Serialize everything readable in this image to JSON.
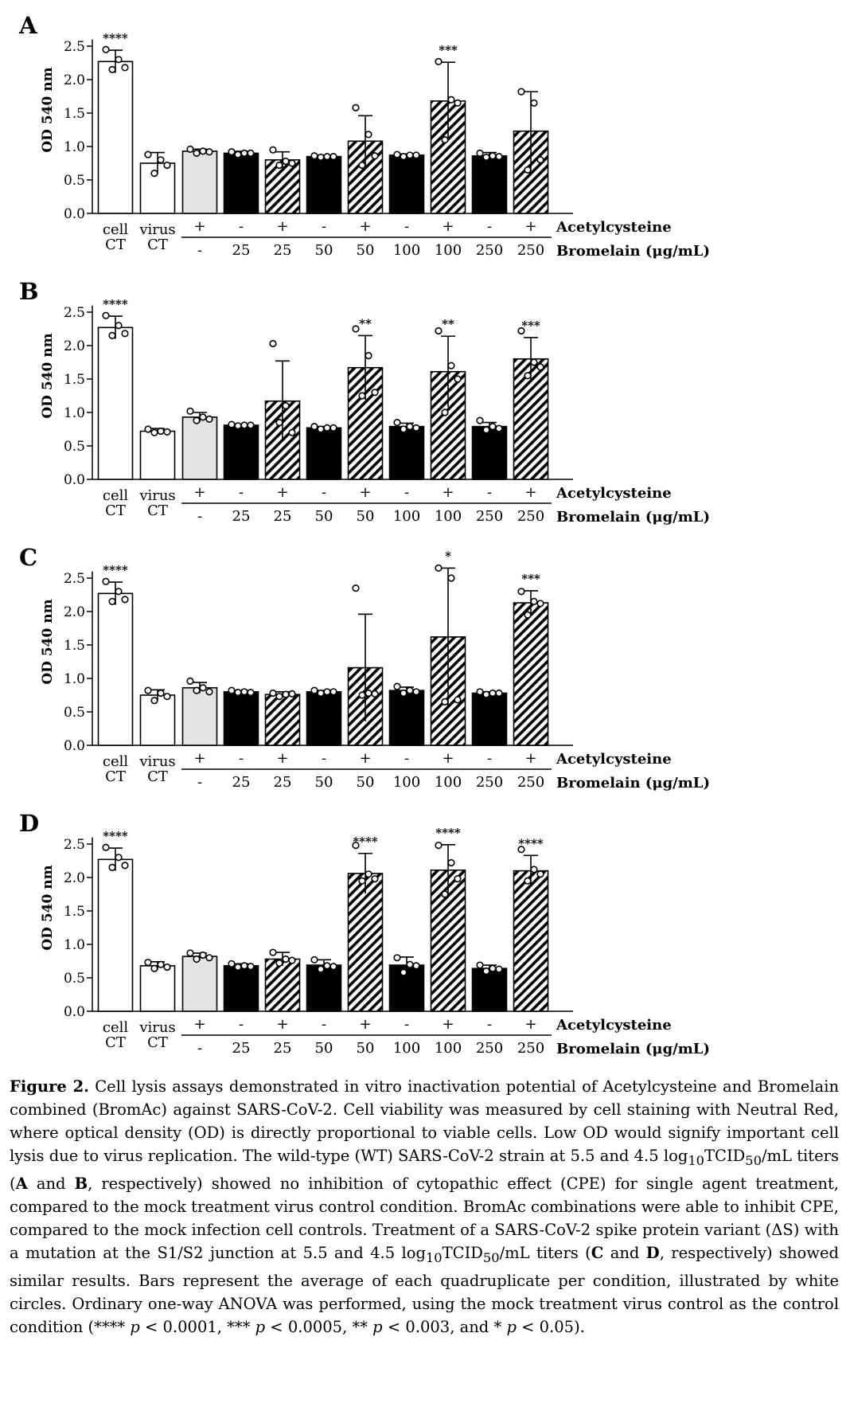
{
  "yaxis": {
    "label": "OD 540 nm",
    "ticks": [
      "0.0",
      "0.5",
      "1.0",
      "1.5",
      "2.0",
      "2.5"
    ],
    "range": [
      0,
      2.6
    ]
  },
  "row_labels": {
    "acetylcysteine": "Acetylcysteine",
    "bromelain": "Bromelain (μg/mL)"
  },
  "groups": [
    {
      "top": "cell",
      "bottom": "CT",
      "acetyl": "",
      "brom": "",
      "fill": "white"
    },
    {
      "top": "virus",
      "bottom": "CT",
      "acetyl": "",
      "brom": "",
      "fill": "white"
    },
    {
      "top": "",
      "bottom": "",
      "acetyl": "+",
      "brom": "-",
      "fill": "gray"
    },
    {
      "top": "",
      "bottom": "",
      "acetyl": "-",
      "brom": "25",
      "fill": "black"
    },
    {
      "top": "",
      "bottom": "",
      "acetyl": "+",
      "brom": "25",
      "fill": "hatch"
    },
    {
      "top": "",
      "bottom": "",
      "acetyl": "-",
      "brom": "50",
      "fill": "black"
    },
    {
      "top": "",
      "bottom": "",
      "acetyl": "+",
      "brom": "50",
      "fill": "hatch"
    },
    {
      "top": "",
      "bottom": "",
      "acetyl": "-",
      "brom": "100",
      "fill": "black"
    },
    {
      "top": "",
      "bottom": "",
      "acetyl": "+",
      "brom": "100",
      "fill": "hatch"
    },
    {
      "top": "",
      "bottom": "",
      "acetyl": "-",
      "brom": "250",
      "fill": "black"
    },
    {
      "top": "",
      "bottom": "",
      "acetyl": "+",
      "brom": "250",
      "fill": "hatch"
    }
  ],
  "chart_data": [
    {
      "panel": "A",
      "type": "bar",
      "ylabel": "OD 540 nm",
      "ylim": [
        0,
        2.6
      ],
      "values": [
        2.27,
        0.75,
        0.93,
        0.9,
        0.8,
        0.85,
        1.08,
        0.87,
        1.68,
        0.86,
        1.23
      ],
      "errors": [
        0.17,
        0.16,
        0.03,
        0.03,
        0.12,
        0.02,
        0.38,
        0.02,
        0.58,
        0.05,
        0.59
      ],
      "points": [
        [
          2.45,
          2.15,
          2.3,
          2.18
        ],
        [
          0.88,
          0.6,
          0.8,
          0.72
        ],
        [
          0.96,
          0.9,
          0.93,
          0.92
        ],
        [
          0.92,
          0.88,
          0.9,
          0.9
        ],
        [
          0.95,
          0.72,
          0.78,
          0.75
        ],
        [
          0.86,
          0.84,
          0.85,
          0.85
        ],
        [
          1.58,
          0.72,
          1.18,
          0.86
        ],
        [
          0.88,
          0.85,
          0.87,
          0.87
        ],
        [
          2.27,
          1.1,
          1.7,
          1.65
        ],
        [
          0.9,
          0.84,
          0.86,
          0.85
        ],
        [
          1.82,
          0.65,
          1.65,
          0.8
        ]
      ],
      "significance": [
        "****",
        "",
        "",
        "",
        "",
        "",
        "",
        "",
        "***",
        "",
        ""
      ]
    },
    {
      "panel": "B",
      "type": "bar",
      "ylabel": "OD 540 nm",
      "ylim": [
        0,
        2.6
      ],
      "values": [
        2.27,
        0.72,
        0.93,
        0.81,
        1.17,
        0.77,
        1.67,
        0.79,
        1.61,
        0.79,
        1.8
      ],
      "errors": [
        0.17,
        0.04,
        0.07,
        0.01,
        0.6,
        0.02,
        0.48,
        0.05,
        0.53,
        0.06,
        0.32
      ],
      "points": [
        [
          2.45,
          2.15,
          2.3,
          2.18
        ],
        [
          0.75,
          0.7,
          0.72,
          0.71
        ],
        [
          1.02,
          0.88,
          0.93,
          0.9
        ],
        [
          0.82,
          0.8,
          0.81,
          0.81
        ],
        [
          2.03,
          0.85,
          1.1,
          0.7
        ],
        [
          0.79,
          0.75,
          0.77,
          0.77
        ],
        [
          2.25,
          1.25,
          1.85,
          1.3
        ],
        [
          0.85,
          0.75,
          0.79,
          0.77
        ],
        [
          2.22,
          1.0,
          1.7,
          1.5
        ],
        [
          0.88,
          0.74,
          0.79,
          0.76
        ],
        [
          2.22,
          1.55,
          1.75,
          1.68
        ]
      ],
      "significance": [
        "****",
        "",
        "",
        "",
        "",
        "",
        "**",
        "",
        "**",
        "",
        "***"
      ]
    },
    {
      "panel": "C",
      "type": "bar",
      "ylabel": "OD 540 nm",
      "ylim": [
        0,
        2.6
      ],
      "values": [
        2.27,
        0.75,
        0.86,
        0.8,
        0.76,
        0.8,
        1.16,
        0.82,
        1.62,
        0.78,
        2.13
      ],
      "errors": [
        0.17,
        0.08,
        0.08,
        0.02,
        0.04,
        0.02,
        0.8,
        0.05,
        1.03,
        0.02,
        0.18
      ],
      "points": [
        [
          2.45,
          2.15,
          2.3,
          2.18
        ],
        [
          0.82,
          0.67,
          0.78,
          0.73
        ],
        [
          0.96,
          0.82,
          0.86,
          0.8
        ],
        [
          0.82,
          0.79,
          0.8,
          0.79
        ],
        [
          0.78,
          0.73,
          0.76,
          0.77
        ],
        [
          0.82,
          0.78,
          0.8,
          0.8
        ],
        [
          2.35,
          0.75,
          0.78,
          0.77
        ],
        [
          0.88,
          0.78,
          0.82,
          0.8
        ],
        [
          2.65,
          0.65,
          2.5,
          0.68
        ],
        [
          0.8,
          0.76,
          0.78,
          0.78
        ],
        [
          2.3,
          1.95,
          2.15,
          2.12
        ]
      ],
      "significance": [
        "****",
        "",
        "",
        "",
        "",
        "",
        "",
        "",
        "*",
        "",
        "***"
      ]
    },
    {
      "panel": "D",
      "type": "bar",
      "ylabel": "OD 540 nm",
      "ylim": [
        0,
        2.6
      ],
      "values": [
        2.27,
        0.68,
        0.82,
        0.68,
        0.78,
        0.69,
        2.06,
        0.69,
        2.11,
        0.64,
        2.1
      ],
      "errors": [
        0.17,
        0.06,
        0.05,
        0.03,
        0.1,
        0.08,
        0.3,
        0.12,
        0.38,
        0.05,
        0.23
      ],
      "points": [
        [
          2.45,
          2.15,
          2.3,
          2.18
        ],
        [
          0.73,
          0.64,
          0.7,
          0.66
        ],
        [
          0.87,
          0.78,
          0.84,
          0.8
        ],
        [
          0.71,
          0.66,
          0.68,
          0.67
        ],
        [
          0.88,
          0.72,
          0.78,
          0.76
        ],
        [
          0.77,
          0.63,
          0.68,
          0.67
        ],
        [
          2.48,
          1.95,
          2.05,
          1.98
        ],
        [
          0.8,
          0.58,
          0.7,
          0.68
        ],
        [
          2.48,
          1.75,
          2.22,
          1.98
        ],
        [
          0.69,
          0.6,
          0.64,
          0.63
        ],
        [
          2.42,
          1.95,
          2.12,
          2.05
        ]
      ],
      "significance": [
        "****",
        "",
        "",
        "",
        "",
        "",
        "****",
        "",
        "****",
        "",
        "****"
      ]
    }
  ],
  "caption": {
    "p1": "Figure 2.",
    "p2": " Cell lysis assays demonstrated in vitro inactivation potential of Acetylcysteine and Bromelain combined (BromAc) against SARS-CoV-2. Cell viability was measured by cell staining with Neutral Red, where optical density (OD) is directly proportional to viable cells. Low OD would signify important cell lysis due to virus replication. The wild-type (WT) SARS-CoV-2 strain at 5.5 and 4.5 log",
    "p3": "10",
    "p4": "TCID",
    "p5": "50",
    "p6": "/mL titers (",
    "p7": "A",
    "p8": " and ",
    "p9": "B",
    "p10": ", respectively) showed no inhibition of cytopathic effect (CPE) for single agent treatment, compared to the mock treatment virus control condition. BromAc combinations were able to inhibit CPE, compared to the mock infection cell controls. Treatment of a SARS-CoV-2 spike protein variant (ΔS) with a mutation at the S1/S2 junction at 5.5 and 4.5 log",
    "p11": "10",
    "p12": "TCID",
    "p13": "50",
    "p14": "/mL titers (",
    "p15": "C",
    "p16": " and ",
    "p17": "D",
    "p18": ", respectively) showed similar results. Bars represent the average of each quadruplicate per condition, illustrated by white circles. Ordinary one-way ANOVA was performed, using the mock treatment virus control as the control condition (**** ",
    "p19": "p",
    "p20": " < 0.0001, *** ",
    "p21": "p",
    "p22": " < 0.0005, ** ",
    "p23": "p",
    "p24": " < 0.003, and * ",
    "p25": "p",
    "p26": " < 0.05)."
  }
}
